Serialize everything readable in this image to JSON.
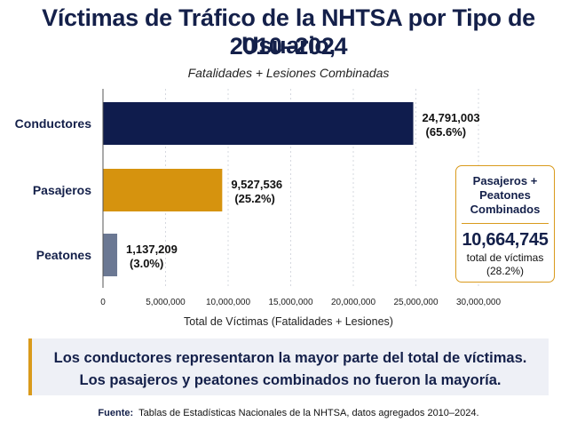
{
  "title": {
    "line1": "Víctimas de Tráfico de la NHTSA por Tipo de Usuario,",
    "line2": "2010–2024"
  },
  "subtitle": "Fatalidades + Lesiones Combinadas",
  "chart_data": {
    "type": "bar",
    "orientation": "horizontal",
    "categories": [
      "Conductores",
      "Pasajeros",
      "Peatones"
    ],
    "values": [
      24791003,
      9527536,
      1137209
    ],
    "value_labels": [
      "24,791,003",
      "9,527,536",
      "1,137,209"
    ],
    "percent_labels": [
      "(65.6%)",
      "(25.2%)",
      "(3.0%)"
    ],
    "colors": [
      "#0f1c4d",
      "#d6930e",
      "#6b7893"
    ],
    "xlabel": "Total de Víctimas (Fatalidades + Lesiones)",
    "xlim": [
      0,
      30000000
    ],
    "xticks": [
      0,
      5000000,
      10000000,
      15000000,
      20000000,
      25000000,
      30000000
    ],
    "xtick_labels": [
      "0",
      "5,000,000",
      "10,000,000",
      "15,000,000",
      "20,000,000",
      "25,000,000",
      "30,000,000"
    ],
    "grid": "vertical dotted"
  },
  "callout": {
    "heading": "Pasajeros + Peatones Combinados",
    "value": "10,664,745",
    "sub1": "total de víctimas",
    "sub2": "(28.2%)"
  },
  "insight": {
    "line1": "Los conductores representaron la mayor parte del total de víctimas.",
    "line2": "Los pasajeros y peatones combinados no fueron la mayoría."
  },
  "source": {
    "label": "Fuente:",
    "text": "Tablas de Estadísticas Nacionales de la NHTSA, datos agregados 2010–2024."
  },
  "colors": {
    "navy": "#14204a",
    "gold": "#d99a1c"
  }
}
